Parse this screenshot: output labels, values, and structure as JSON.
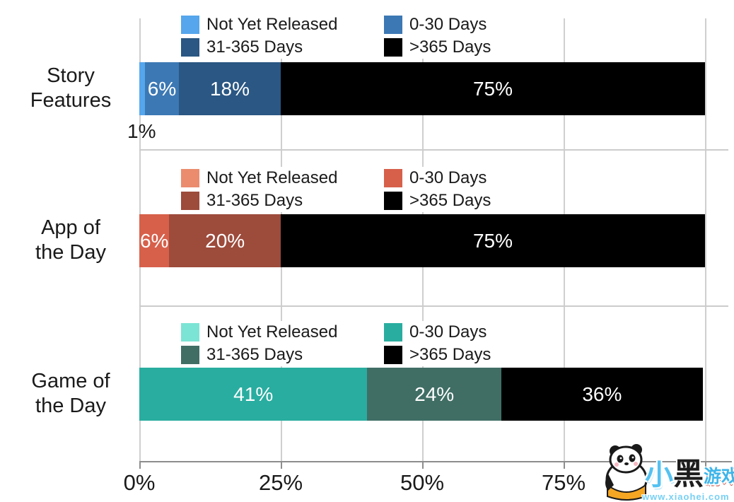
{
  "chart_data": {
    "type": "bar",
    "orientation": "horizontal",
    "stacked": true,
    "unit": "%",
    "title": "",
    "x_axis": {
      "range": [
        0,
        100
      ],
      "ticks": [
        {
          "label": "0%",
          "pct": 0
        },
        {
          "label": "25%",
          "pct": 25
        },
        {
          "label": "50%",
          "pct": 50
        },
        {
          "label": "75%",
          "pct": 75
        }
      ],
      "gridlines_pct": [
        0,
        25,
        50,
        75,
        100
      ]
    },
    "legend_labels": [
      "Not Yet Released",
      "0-30 Days",
      "31-365 Days",
      ">365 Days"
    ],
    "rows": [
      {
        "category": "Story Features",
        "label_lines": [
          "Story",
          "Features"
        ],
        "legend_items": [
          {
            "label": "Not Yet Released",
            "color": "#55A6EC"
          },
          {
            "label": "0-30 Days",
            "color": "#3C78B4"
          },
          {
            "label": "31-365 Days",
            "color": "#2A5783"
          },
          {
            "label": ">365 Days",
            "color": "#000000"
          }
        ],
        "segments": [
          {
            "name": "Not Yet Released",
            "value": 1,
            "display": "",
            "width_pct": 1,
            "color": "#55A6EC"
          },
          {
            "name": "0-30 Days",
            "value": 6,
            "display": "6%",
            "width_pct": 6,
            "color": "#3C78B4"
          },
          {
            "name": "31-365 Days",
            "value": 18,
            "display": "18%",
            "width_pct": 18,
            "color": "#2A5783"
          },
          {
            "name": ">365 Days",
            "value": 75,
            "display": "75%",
            "width_pct": 75,
            "color": "#000000"
          }
        ],
        "outside_label": {
          "text": "1%",
          "refers_to": "Not Yet Released"
        }
      },
      {
        "category": "App of the Day",
        "label_lines": [
          "App of",
          "the Day"
        ],
        "legend_items": [
          {
            "label": "Not Yet Released",
            "color": "#EB8C6E"
          },
          {
            "label": "0-30 Days",
            "color": "#D7604B"
          },
          {
            "label": "31-365 Days",
            "color": "#9D4B3B"
          },
          {
            "label": ">365 Days",
            "color": "#000000"
          }
        ],
        "segments": [
          {
            "name": "Not Yet Released",
            "value": 0,
            "display": "",
            "width_pct": 0,
            "color": "#EB8C6E"
          },
          {
            "name": "0-30 Days",
            "value": 6,
            "display": "6%",
            "width_pct": 5.3,
            "color": "#D7604B"
          },
          {
            "name": "31-365 Days",
            "value": 20,
            "display": "20%",
            "width_pct": 19.7,
            "color": "#9D4B3B"
          },
          {
            "name": ">365 Days",
            "value": 75,
            "display": "75%",
            "width_pct": 75,
            "color": "#000000"
          }
        ]
      },
      {
        "category": "Game of the Day",
        "label_lines": [
          "Game of",
          "the Day"
        ],
        "legend_items": [
          {
            "label": "Not Yet Released",
            "color": "#7BE4D4"
          },
          {
            "label": "0-30 Days",
            "color": "#29ADA0"
          },
          {
            "label": "31-365 Days",
            "color": "#406E65"
          },
          {
            "label": ">365 Days",
            "color": "#000000"
          }
        ],
        "segments": [
          {
            "name": "Not Yet Released",
            "value": 0,
            "display": "",
            "width_pct": 0,
            "color": "#7BE4D4"
          },
          {
            "name": "0-30 Days",
            "value": 41,
            "display": "41%",
            "width_pct": 40.3,
            "color": "#29ADA0"
          },
          {
            "name": "31-365 Days",
            "value": 24,
            "display": "24%",
            "width_pct": 23.7,
            "color": "#406E65"
          },
          {
            "name": ">365 Days",
            "value": 36,
            "display": "36%",
            "width_pct": 35.6,
            "color": "#000000"
          }
        ]
      }
    ]
  },
  "watermark": {
    "mascot": "panda",
    "brand_char_1": "小",
    "brand_char_2": "黑",
    "brand_char_3": "游戏",
    "url": "www.xiaohei.com"
  },
  "colors": {
    "grid": "#CFCFCF",
    "axis": "#8D8D8D",
    "text": "#1A1A1A",
    "bar_label": "#FFFFFF",
    "background": "#FFFFFF"
  }
}
